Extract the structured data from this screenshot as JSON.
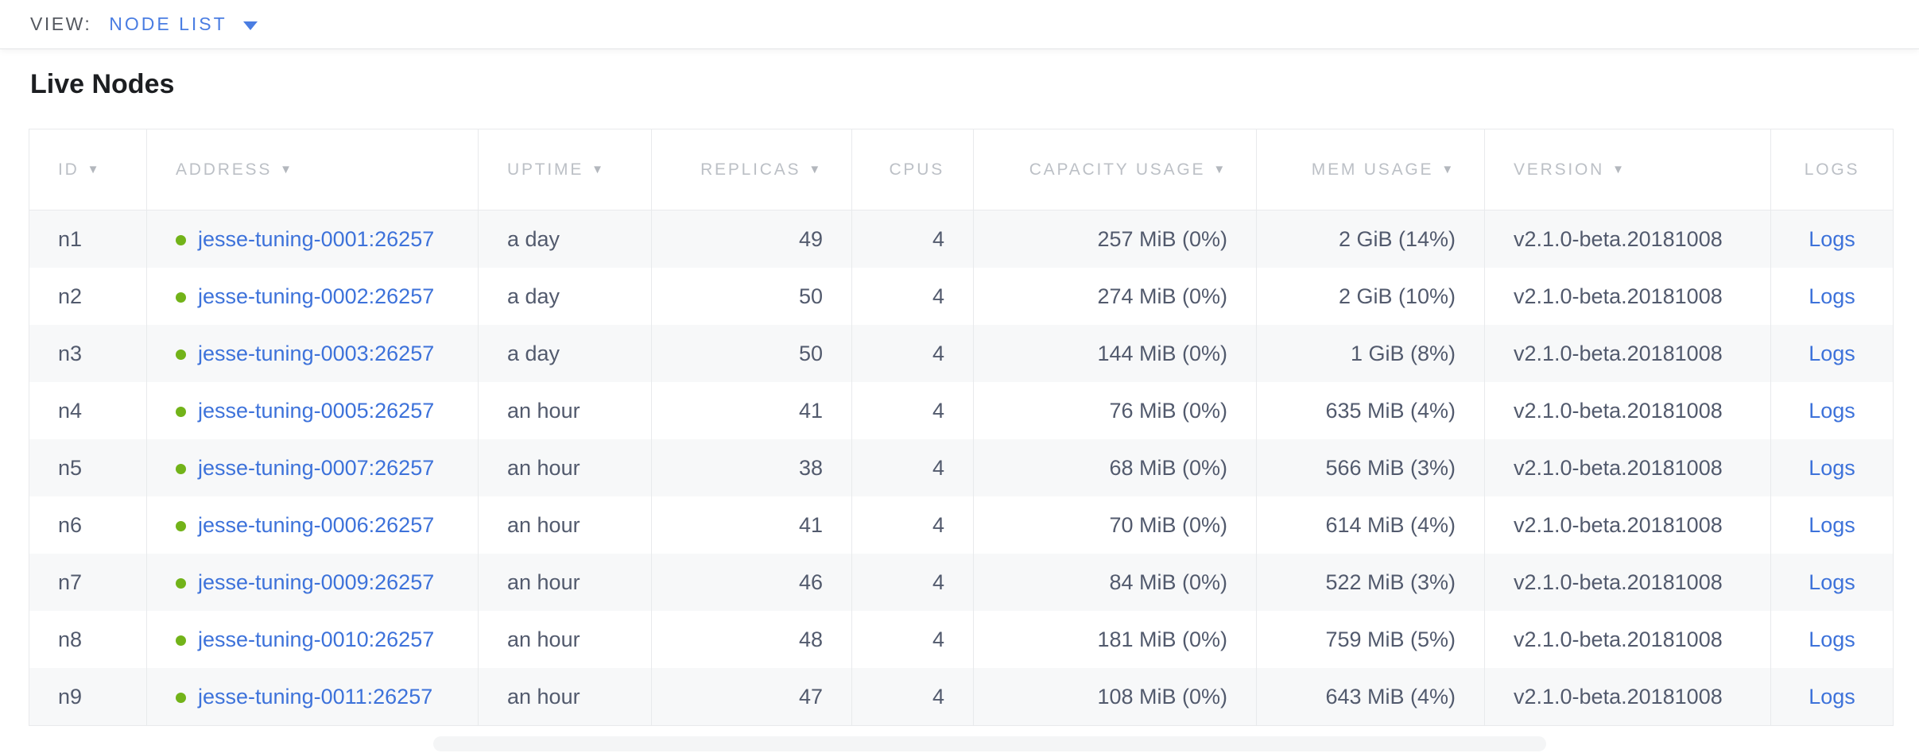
{
  "view_bar": {
    "label": "VIEW:",
    "selected": "NODE LIST"
  },
  "page": {
    "title": "Live Nodes"
  },
  "table": {
    "columns": [
      {
        "key": "id",
        "label": "ID",
        "sortable": true,
        "align": "left"
      },
      {
        "key": "address",
        "label": "ADDRESS",
        "sortable": true,
        "align": "left"
      },
      {
        "key": "uptime",
        "label": "UPTIME",
        "sortable": true,
        "align": "left"
      },
      {
        "key": "replicas",
        "label": "REPLICAS",
        "sortable": true,
        "align": "right"
      },
      {
        "key": "cpus",
        "label": "CPUS",
        "sortable": false,
        "align": "right"
      },
      {
        "key": "capacity",
        "label": "CAPACITY USAGE",
        "sortable": true,
        "align": "right"
      },
      {
        "key": "mem",
        "label": "MEM USAGE",
        "sortable": true,
        "align": "right"
      },
      {
        "key": "version",
        "label": "VERSION",
        "sortable": true,
        "align": "left"
      },
      {
        "key": "logs",
        "label": "LOGS",
        "sortable": false,
        "align": "center"
      }
    ],
    "rows": [
      {
        "id": "n1",
        "address": "jesse-tuning-0001:26257",
        "uptime": "a day",
        "replicas": "49",
        "cpus": "4",
        "capacity": "257 MiB (0%)",
        "mem": "2 GiB (14%)",
        "version": "v2.1.0-beta.20181008",
        "logs": "Logs"
      },
      {
        "id": "n2",
        "address": "jesse-tuning-0002:26257",
        "uptime": "a day",
        "replicas": "50",
        "cpus": "4",
        "capacity": "274 MiB (0%)",
        "mem": "2 GiB (10%)",
        "version": "v2.1.0-beta.20181008",
        "logs": "Logs"
      },
      {
        "id": "n3",
        "address": "jesse-tuning-0003:26257",
        "uptime": "a day",
        "replicas": "50",
        "cpus": "4",
        "capacity": "144 MiB (0%)",
        "mem": "1 GiB (8%)",
        "version": "v2.1.0-beta.20181008",
        "logs": "Logs"
      },
      {
        "id": "n4",
        "address": "jesse-tuning-0005:26257",
        "uptime": "an hour",
        "replicas": "41",
        "cpus": "4",
        "capacity": "76 MiB (0%)",
        "mem": "635 MiB (4%)",
        "version": "v2.1.0-beta.20181008",
        "logs": "Logs"
      },
      {
        "id": "n5",
        "address": "jesse-tuning-0007:26257",
        "uptime": "an hour",
        "replicas": "38",
        "cpus": "4",
        "capacity": "68 MiB (0%)",
        "mem": "566 MiB (3%)",
        "version": "v2.1.0-beta.20181008",
        "logs": "Logs"
      },
      {
        "id": "n6",
        "address": "jesse-tuning-0006:26257",
        "uptime": "an hour",
        "replicas": "41",
        "cpus": "4",
        "capacity": "70 MiB (0%)",
        "mem": "614 MiB (4%)",
        "version": "v2.1.0-beta.20181008",
        "logs": "Logs"
      },
      {
        "id": "n7",
        "address": "jesse-tuning-0009:26257",
        "uptime": "an hour",
        "replicas": "46",
        "cpus": "4",
        "capacity": "84 MiB (0%)",
        "mem": "522 MiB (3%)",
        "version": "v2.1.0-beta.20181008",
        "logs": "Logs"
      },
      {
        "id": "n8",
        "address": "jesse-tuning-0010:26257",
        "uptime": "an hour",
        "replicas": "48",
        "cpus": "4",
        "capacity": "181 MiB (0%)",
        "mem": "759 MiB (5%)",
        "version": "v2.1.0-beta.20181008",
        "logs": "Logs"
      },
      {
        "id": "n9",
        "address": "jesse-tuning-0011:26257",
        "uptime": "an hour",
        "replicas": "47",
        "cpus": "4",
        "capacity": "108 MiB (0%)",
        "mem": "643 MiB (4%)",
        "version": "v2.1.0-beta.20181008",
        "logs": "Logs"
      }
    ]
  },
  "icons": {
    "sort_arrow": "▼",
    "dropdown_arrow": "chevron-down",
    "live_status_dot": "green-circle"
  },
  "colors": {
    "accent_blue": "#4a7de2",
    "link_blue": "#3d72da",
    "live_green": "#72b319",
    "header_gray": "#bcc0c6",
    "cell_text": "#525a6d",
    "row_stripe": "#f7f8f9",
    "border": "#e8eaec"
  }
}
